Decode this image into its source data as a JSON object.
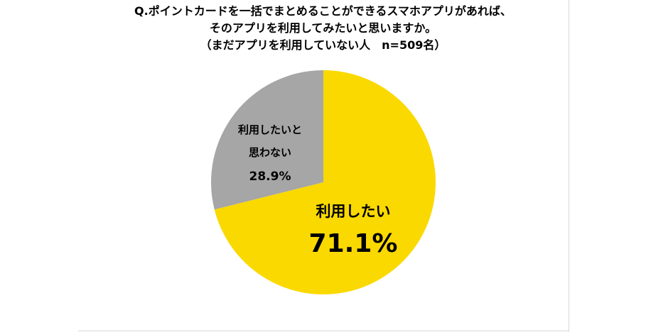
{
  "title": {
    "line1": "Q.ポイントカードを一括でまとめることができるスマホアプリがあれば、",
    "line2": "そのアプリを利用してみたいと思いますか。",
    "line3": "（まだアプリを利用していない人　n=509名）"
  },
  "chart_data": {
    "type": "pie",
    "start_angle_deg": 0,
    "direction": "clockwise",
    "slices": [
      {
        "label": "利用したい",
        "value": 71.1,
        "value_label": "71.1%",
        "color": "#FAD900"
      },
      {
        "label": "利用したいと思わない",
        "label_lines": [
          "利用したいと",
          "思わない"
        ],
        "value": 28.9,
        "value_label": "28.9%",
        "color": "#A6A6A6"
      }
    ]
  }
}
